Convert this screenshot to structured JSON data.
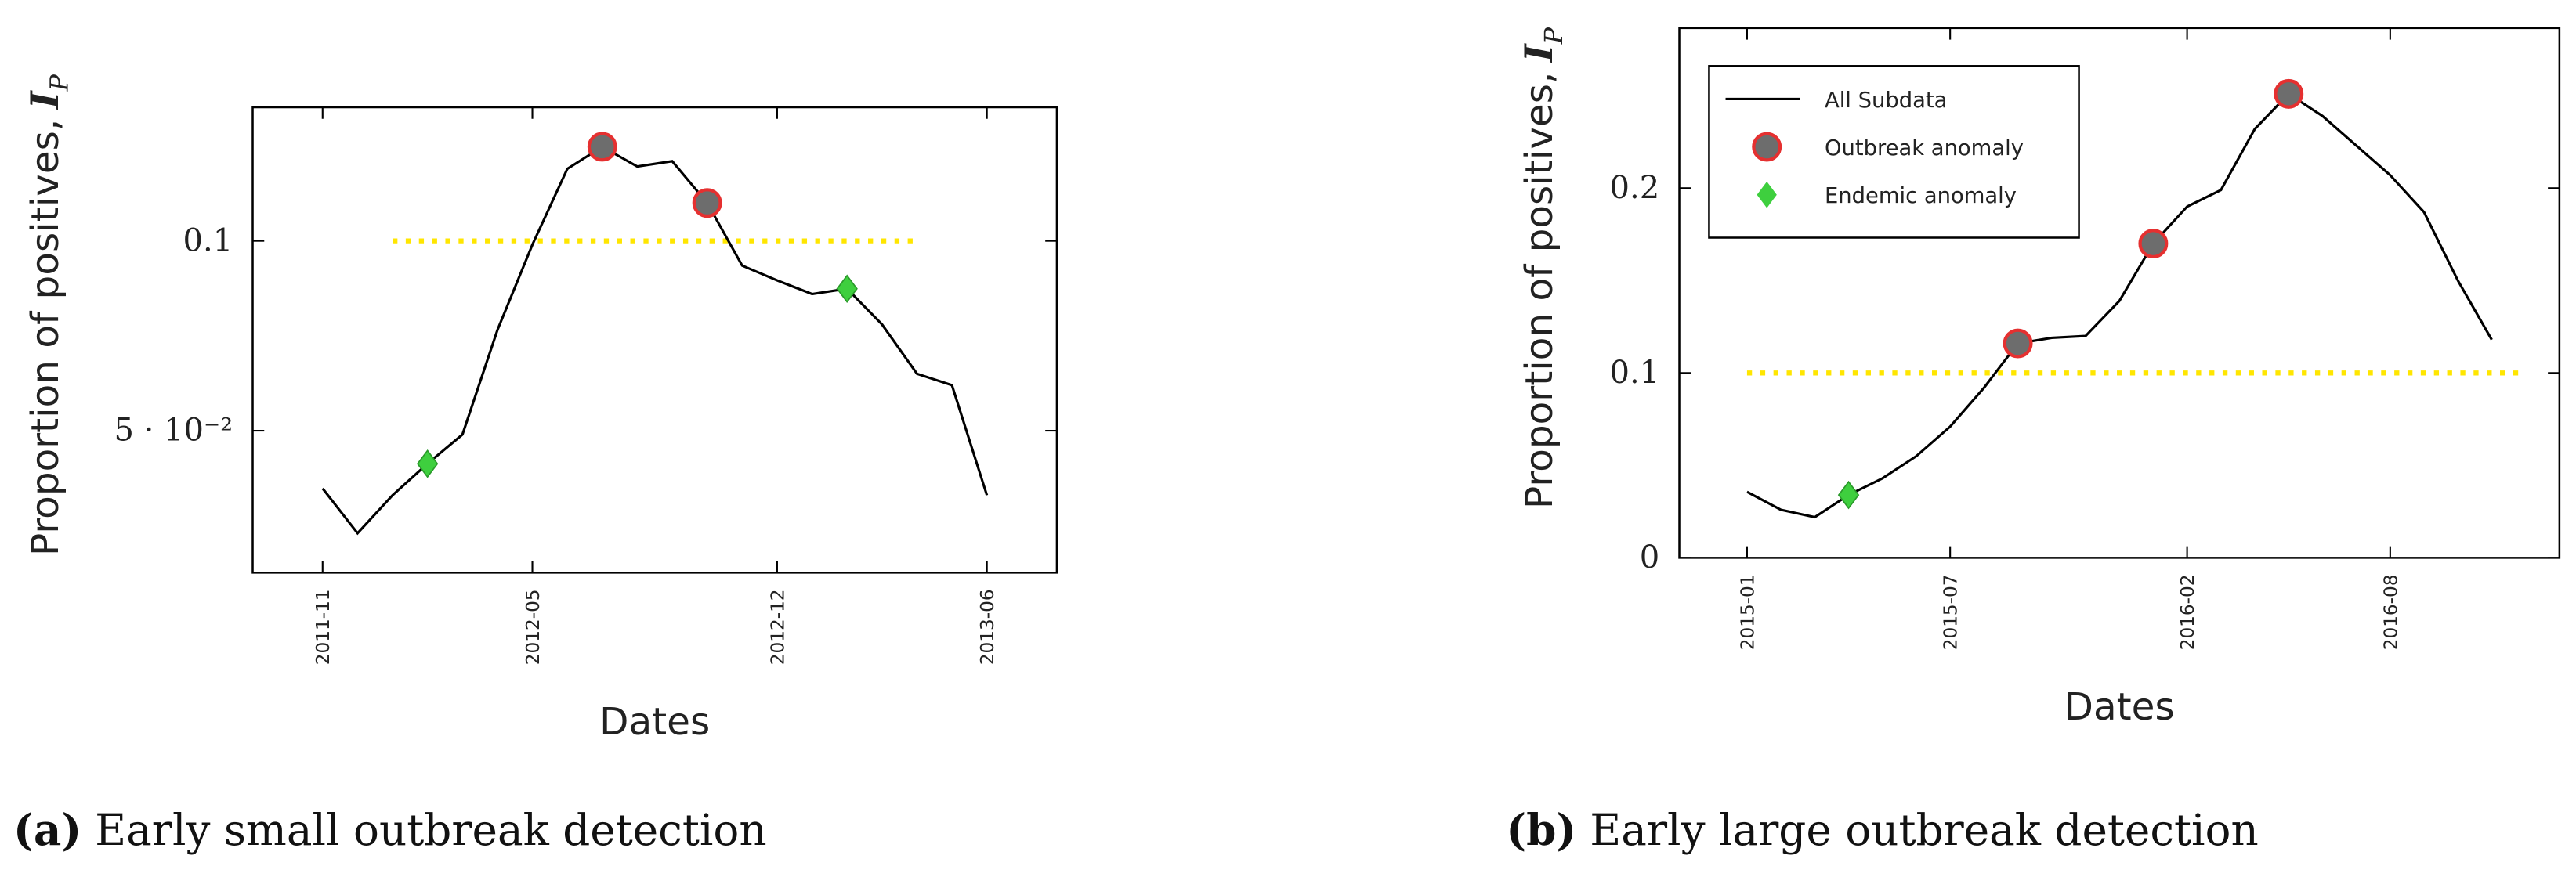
{
  "chart_data": [
    {
      "type": "line",
      "caption_tag": "(a)",
      "caption": "Early small outbreak detection",
      "xlabel": "Dates",
      "ylabel": "Proportion of positives,",
      "ylabel_symbol": "I",
      "ylabel_subscript": "P",
      "xlim": [
        "2011-09",
        "2013-08"
      ],
      "xticks": [
        "2011-11",
        "2012-05",
        "2012-12",
        "2013-06"
      ],
      "ylim": [
        0.0126,
        0.1352
      ],
      "yticks": [
        {
          "value": 0.05,
          "label": "5 · 10⁻²"
        },
        0.1
      ],
      "legend": false,
      "threshold": {
        "value": 0.1,
        "x": [
          "2012-01",
          "2013-04"
        ],
        "color": "#ffe600"
      },
      "series": [
        {
          "name": "All Subdata",
          "color": "#000000",
          "marker": "line",
          "x": [
            "2011-11",
            "2011-12",
            "2012-01",
            "2012-02",
            "2012-03",
            "2012-04",
            "2012-05",
            "2012-06",
            "2012-07",
            "2012-08",
            "2012-09",
            "2012-10",
            "2012-11",
            "2012-12",
            "2013-01",
            "2013-02",
            "2013-03",
            "2013-04",
            "2013-05",
            "2013-06"
          ],
          "values": [
            0.0348,
            0.023,
            0.033,
            0.0413,
            0.049,
            0.0765,
            0.099,
            0.119,
            0.1248,
            0.1196,
            0.121,
            0.11,
            0.0935,
            0.0896,
            0.086,
            0.0874,
            0.078,
            0.065,
            0.062,
            0.033
          ]
        },
        {
          "name": "Outbreak anomaly",
          "color": "#e53030",
          "marker": "circle",
          "x": [
            "2012-07",
            "2012-10"
          ],
          "values": [
            0.1248,
            0.11
          ]
        },
        {
          "name": "Endemic anomaly",
          "color": "#3ecf3e",
          "marker": "diamond",
          "x": [
            "2012-02",
            "2013-02"
          ],
          "values": [
            0.0413,
            0.0874
          ]
        }
      ]
    },
    {
      "type": "line",
      "caption_tag": "(b)",
      "caption": "Early large outbreak detection",
      "xlabel": "Dates",
      "ylabel": "Proportion of positives,",
      "ylabel_symbol": "I",
      "ylabel_subscript": "P",
      "xlim": [
        "2014-11",
        "2017-01"
      ],
      "xticks": [
        "2015-01",
        "2015-07",
        "2016-02",
        "2016-08"
      ],
      "ylim": [
        0,
        0.2866
      ],
      "yticks": [
        0,
        0.1,
        0.2
      ],
      "legend": true,
      "threshold": {
        "value": 0.1,
        "x": [
          "2015-01",
          "2016-12"
        ],
        "color": "#ffe600"
      },
      "series": [
        {
          "name": "All Subdata",
          "color": "#000000",
          "marker": "line",
          "x": [
            "2015-01",
            "2015-02",
            "2015-03",
            "2015-04",
            "2015-05",
            "2015-06",
            "2015-07",
            "2015-08",
            "2015-09",
            "2015-10",
            "2015-11",
            "2015-12",
            "2016-01",
            "2016-02",
            "2016-03",
            "2016-04",
            "2016-05",
            "2016-06",
            "2016-07",
            "2016-08",
            "2016-09",
            "2016-10",
            "2016-11"
          ],
          "values": [
            0.0357,
            0.026,
            0.022,
            0.034,
            0.043,
            0.055,
            0.071,
            0.092,
            0.116,
            0.119,
            0.12,
            0.139,
            0.17,
            0.19,
            0.199,
            0.232,
            0.251,
            0.239,
            0.223,
            0.207,
            0.187,
            0.15,
            0.118
          ]
        },
        {
          "name": "Outbreak anomaly",
          "color": "#e53030",
          "marker": "circle",
          "x": [
            "2015-09",
            "2016-01",
            "2016-05"
          ],
          "values": [
            0.116,
            0.17,
            0.251
          ]
        },
        {
          "name": "Endemic anomaly",
          "color": "#3ecf3e",
          "marker": "diamond",
          "x": [
            "2015-04"
          ],
          "values": [
            0.034
          ]
        }
      ]
    }
  ]
}
